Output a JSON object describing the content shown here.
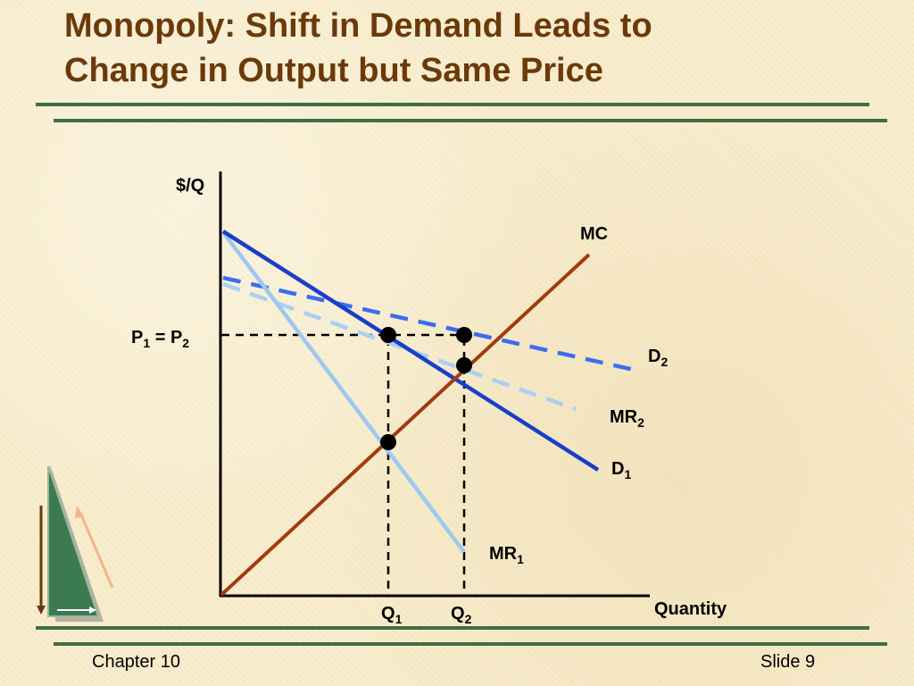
{
  "slide": {
    "title_line1": "Monopoly: Shift in Demand Leads to",
    "title_line2": "Change in Output but Same Price",
    "footer_left": "Chapter 10",
    "footer_right": "Slide 9"
  },
  "diagram": {
    "y_axis_label": "$/Q",
    "x_axis_label": "Quantity",
    "price_label": {
      "p1": "P",
      "p1_sub": "1",
      "eq": " = ",
      "p2": "P",
      "p2_sub": "2"
    },
    "q_labels": [
      {
        "main": "Q",
        "sub": "1"
      },
      {
        "main": "Q",
        "sub": "2"
      }
    ],
    "curve_labels": {
      "mc": {
        "main": "MC",
        "sub": ""
      },
      "d1": {
        "main": "D",
        "sub": "1"
      },
      "d2": {
        "main": "D",
        "sub": "2"
      },
      "mr1": {
        "main": "MR",
        "sub": "1"
      },
      "mr2": {
        "main": "MR",
        "sub": "2"
      }
    },
    "colors": {
      "mc": "#a33a0f",
      "d1": "#1a3ec8",
      "d2": "#3a6ef0",
      "mr1": "#9dc8f0",
      "mr2": "#a8d0f4",
      "axes": "#000000",
      "guides": "#000000"
    }
  }
}
